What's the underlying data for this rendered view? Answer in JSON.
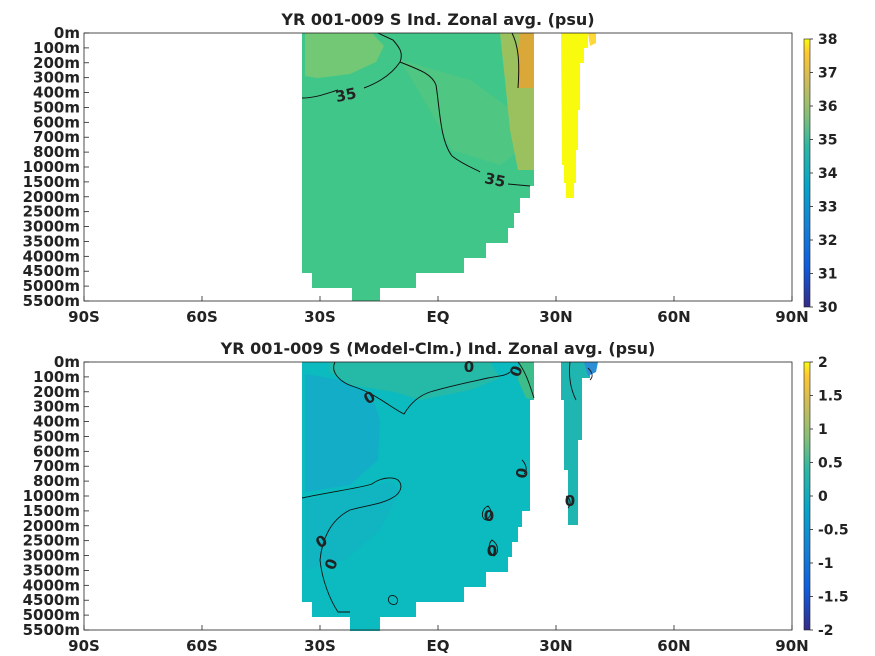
{
  "chart_data": [
    {
      "type": "heatmap",
      "title": "YR 001-009 S Ind. Zonal avg. (psu)",
      "x_ticks": [
        "90S",
        "60S",
        "30S",
        "EQ",
        "30N",
        "60N",
        "90N"
      ],
      "xlim": [
        -90,
        90
      ],
      "y_ticks": [
        "0m",
        "100m",
        "200m",
        "300m",
        "400m",
        "500m",
        "600m",
        "700m",
        "800m",
        "1000m",
        "1500m",
        "2000m",
        "2500m",
        "3000m",
        "3500m",
        "4000m",
        "4500m",
        "5000m",
        "5500m"
      ],
      "colorbar": {
        "ticks": [
          "38",
          "37",
          "36",
          "35",
          "34",
          "33",
          "32",
          "31",
          "30"
        ],
        "range": [
          30,
          38
        ],
        "colormap": "parula"
      },
      "field": [
        {
          "lat_range": [
            -34,
            27
          ],
          "depth_range": [
            0,
            5000
          ],
          "value": 34.8
        },
        {
          "lat_range": [
            -30,
            -10
          ],
          "depth_range": [
            0,
            300
          ],
          "value": 35.6
        },
        {
          "lat_range": [
            15,
            26
          ],
          "depth_range": [
            0,
            1000
          ],
          "value": 35.3
        },
        {
          "lat_range": [
            22,
            26
          ],
          "depth_range": [
            0,
            400
          ],
          "value": 36.2
        },
        {
          "lat_range": [
            31,
            36
          ],
          "depth_range": [
            0,
            2000
          ],
          "value": 38.0
        }
      ],
      "contours": [
        {
          "level": "35",
          "labels": 2
        }
      ]
    },
    {
      "type": "heatmap",
      "title": "YR 001-009 S (Model-Clm.) Ind. Zonal avg. (psu)",
      "x_ticks": [
        "90S",
        "60S",
        "30S",
        "EQ",
        "30N",
        "60N",
        "90N"
      ],
      "xlim": [
        -90,
        90
      ],
      "y_ticks": [
        "0m",
        "100m",
        "200m",
        "300m",
        "400m",
        "500m",
        "600m",
        "700m",
        "800m",
        "1000m",
        "1500m",
        "2000m",
        "2500m",
        "3000m",
        "3500m",
        "4000m",
        "4500m",
        "5000m",
        "5500m"
      ],
      "colorbar": {
        "ticks": [
          "2",
          "1.5",
          "1",
          "0.5",
          "0",
          "-0.5",
          "-1",
          "-1.5",
          "-2"
        ],
        "range": [
          -2,
          2
        ],
        "colormap": "parula"
      },
      "field": [
        {
          "lat_range": [
            -34,
            27
          ],
          "depth_range": [
            0,
            5000
          ],
          "value": -0.25
        },
        {
          "lat_range": [
            -30,
            -10
          ],
          "depth_range": [
            0,
            700
          ],
          "value": -0.45
        },
        {
          "lat_range": [
            -20,
            15
          ],
          "depth_range": [
            0,
            100
          ],
          "value": 0.1
        },
        {
          "lat_range": [
            31,
            36
          ],
          "depth_range": [
            0,
            2000
          ],
          "value": -0.3
        }
      ],
      "contours": [
        {
          "level": "0",
          "labels": 7
        }
      ]
    }
  ]
}
